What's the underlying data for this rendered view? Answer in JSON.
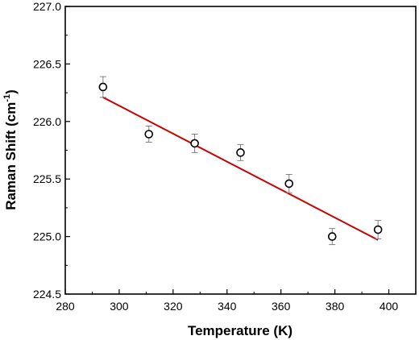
{
  "chart_data": {
    "type": "scatter",
    "xlabel": "Temperature (K)",
    "ylabel": "Raman Shift (cm",
    "ylabel_sup": "-1",
    "ylabel_suffix": ")",
    "xlim": [
      280,
      410
    ],
    "ylim": [
      224.5,
      227.0
    ],
    "xticks": [
      280,
      300,
      320,
      340,
      360,
      380,
      400
    ],
    "yticks": [
      224.5,
      225.0,
      225.5,
      226.0,
      226.5,
      227.0
    ],
    "xtick_labels": [
      "280",
      "300",
      "320",
      "340",
      "360",
      "380",
      "400"
    ],
    "ytick_labels": [
      "224.5",
      "225.0",
      "225.5",
      "226.0",
      "226.5",
      "227.0"
    ],
    "grid": false,
    "series": [
      {
        "marker": "open-circle",
        "color": "#000000",
        "points": [
          {
            "x": 294,
            "y": 226.3,
            "err": 0.09
          },
          {
            "x": 311,
            "y": 225.89,
            "err": 0.07
          },
          {
            "x": 328,
            "y": 225.81,
            "err": 0.08
          },
          {
            "x": 345,
            "y": 225.73,
            "err": 0.07
          },
          {
            "x": 363,
            "y": 225.46,
            "err": 0.08
          },
          {
            "x": 379,
            "y": 225.0,
            "err": 0.07
          },
          {
            "x": 396,
            "y": 225.06,
            "err": 0.08
          }
        ]
      }
    ],
    "fit_line": {
      "color": "#cc0000",
      "x": [
        294,
        396
      ],
      "y": [
        226.21,
        224.97
      ]
    }
  }
}
